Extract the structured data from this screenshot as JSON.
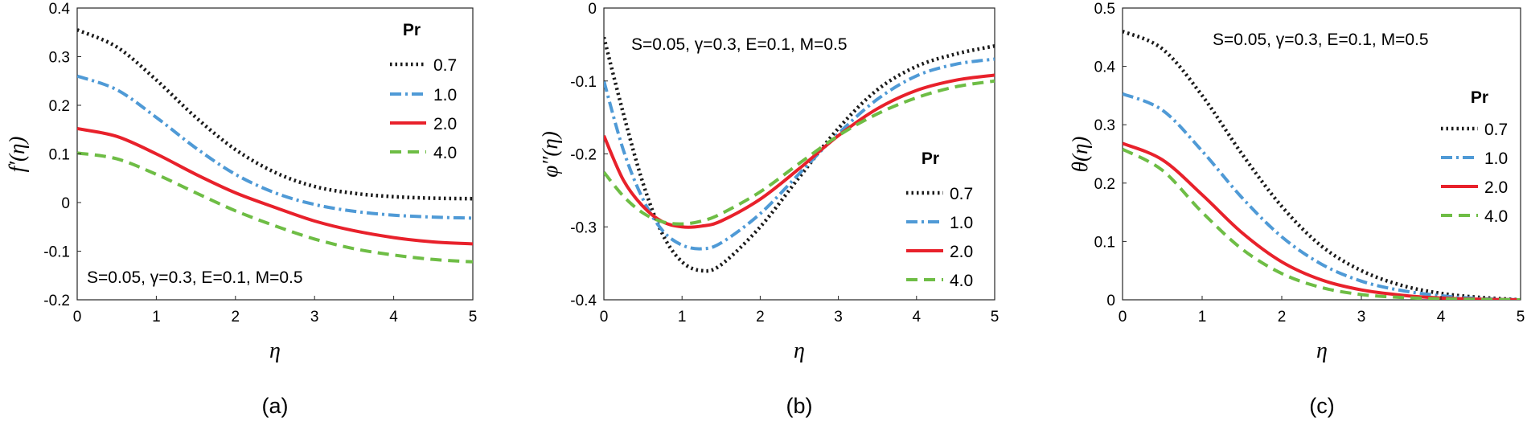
{
  "chart_data": [
    {
      "type": "line",
      "panel_label": "(a)",
      "xlabel": "η",
      "ylabel": "f′(η)",
      "xlim": [
        0,
        5
      ],
      "ylim": [
        -0.2,
        0.4
      ],
      "xticks": [
        0,
        1,
        2,
        3,
        4,
        5
      ],
      "yticks": [
        -0.2,
        -0.1,
        0,
        0.1,
        0.2,
        0.3,
        0.4
      ],
      "xtick_labels": [
        "0",
        "1",
        "2",
        "3",
        "4",
        "5"
      ],
      "ytick_labels": [
        "-0.2",
        "-0.1",
        "0",
        "0.1",
        "0.2",
        "0.3",
        "0.4"
      ],
      "annotation": "S=0.05, γ=0.3, E=0.1, M=0.5",
      "legend_title": "Pr",
      "legend_position": "top-right",
      "x": [
        0,
        0.5,
        1,
        1.5,
        2,
        2.5,
        3,
        3.5,
        4,
        4.5,
        5
      ],
      "series": [
        {
          "name": "0.7",
          "style": "dotted",
          "color": "#1a1a1a",
          "values": [
            0.355,
            0.32,
            0.252,
            0.175,
            0.109,
            0.062,
            0.033,
            0.019,
            0.012,
            0.009,
            0.008
          ]
        },
        {
          "name": "1.0",
          "style": "dashdot",
          "color": "#4f9ad6",
          "values": [
            0.26,
            0.232,
            0.175,
            0.112,
            0.058,
            0.02,
            -0.004,
            -0.018,
            -0.026,
            -0.03,
            -0.032
          ]
        },
        {
          "name": "2.0",
          "style": "solid",
          "color": "#e8212b",
          "values": [
            0.152,
            0.136,
            0.1,
            0.058,
            0.02,
            -0.01,
            -0.038,
            -0.058,
            -0.072,
            -0.081,
            -0.085
          ]
        },
        {
          "name": "4.0",
          "style": "dashed",
          "color": "#6ebd45",
          "values": [
            0.102,
            0.09,
            0.058,
            0.02,
            -0.017,
            -0.048,
            -0.075,
            -0.095,
            -0.108,
            -0.117,
            -0.122
          ]
        }
      ]
    },
    {
      "type": "line",
      "panel_label": "(b)",
      "xlabel": "η",
      "ylabel": "φ″(η)",
      "xlim": [
        0,
        5
      ],
      "ylim": [
        -0.4,
        0
      ],
      "xticks": [
        0,
        1,
        2,
        3,
        4,
        5
      ],
      "yticks": [
        -0.4,
        -0.3,
        -0.2,
        -0.1,
        0
      ],
      "xtick_labels": [
        "0",
        "1",
        "2",
        "3",
        "4",
        "5"
      ],
      "ytick_labels": [
        "-0.4",
        "-0.3",
        "-0.2",
        "-0.1",
        "0"
      ],
      "annotation": "S=0.05, γ=0.3, E=0.1, M=0.5",
      "legend_title": "Pr",
      "legend_position": "center-right",
      "x": [
        0,
        0.25,
        0.5,
        0.75,
        1,
        1.25,
        1.5,
        2,
        2.5,
        3,
        3.5,
        4,
        4.5,
        5
      ],
      "series": [
        {
          "name": "0.7",
          "style": "dotted",
          "color": "#1a1a1a",
          "values": [
            -0.04,
            -0.145,
            -0.24,
            -0.31,
            -0.348,
            -0.36,
            -0.352,
            -0.3,
            -0.232,
            -0.165,
            -0.112,
            -0.08,
            -0.063,
            -0.052
          ]
        },
        {
          "name": "1.0",
          "style": "dashdot",
          "color": "#4f9ad6",
          "values": [
            -0.1,
            -0.195,
            -0.262,
            -0.305,
            -0.325,
            -0.33,
            -0.322,
            -0.282,
            -0.227,
            -0.172,
            -0.125,
            -0.093,
            -0.077,
            -0.07
          ]
        },
        {
          "name": "2.0",
          "style": "solid",
          "color": "#e8212b",
          "values": [
            -0.175,
            -0.236,
            -0.272,
            -0.293,
            -0.3,
            -0.299,
            -0.292,
            -0.262,
            -0.22,
            -0.175,
            -0.138,
            -0.113,
            -0.099,
            -0.092
          ]
        },
        {
          "name": "4.0",
          "style": "dashed",
          "color": "#6ebd45",
          "values": [
            -0.225,
            -0.258,
            -0.281,
            -0.293,
            -0.296,
            -0.292,
            -0.282,
            -0.252,
            -0.213,
            -0.175,
            -0.145,
            -0.123,
            -0.108,
            -0.1
          ]
        }
      ]
    },
    {
      "type": "line",
      "panel_label": "(c)",
      "xlabel": "η",
      "ylabel": "θ(η)",
      "xlim": [
        0,
        5
      ],
      "ylim": [
        0,
        0.5
      ],
      "xticks": [
        0,
        1,
        2,
        3,
        4,
        5
      ],
      "yticks": [
        0,
        0.1,
        0.2,
        0.3,
        0.4,
        0.5
      ],
      "xtick_labels": [
        "0",
        "1",
        "2",
        "3",
        "4",
        "5"
      ],
      "ytick_labels": [
        "0",
        "0.1",
        "0.2",
        "0.3",
        "0.4",
        "0.5"
      ],
      "annotation": "S=0.05, γ=0.3, E=0.1, M=0.5",
      "legend_title": "Pr",
      "legend_position": "top-right",
      "x": [
        0,
        0.5,
        1,
        1.5,
        2,
        2.5,
        3,
        3.5,
        4,
        4.5,
        5
      ],
      "series": [
        {
          "name": "0.7",
          "style": "dotted",
          "color": "#1a1a1a",
          "values": [
            0.46,
            0.43,
            0.35,
            0.25,
            0.16,
            0.092,
            0.05,
            0.025,
            0.011,
            0.004,
            0.0
          ]
        },
        {
          "name": "1.0",
          "style": "dashdot",
          "color": "#4f9ad6",
          "values": [
            0.353,
            0.325,
            0.255,
            0.175,
            0.108,
            0.061,
            0.032,
            0.016,
            0.007,
            0.002,
            0.0
          ]
        },
        {
          "name": "2.0",
          "style": "solid",
          "color": "#e8212b",
          "values": [
            0.268,
            0.24,
            0.18,
            0.115,
            0.065,
            0.034,
            0.017,
            0.008,
            0.003,
            0.001,
            0.0
          ]
        },
        {
          "name": "4.0",
          "style": "dashed",
          "color": "#6ebd45",
          "values": [
            0.258,
            0.222,
            0.15,
            0.087,
            0.045,
            0.021,
            0.009,
            0.004,
            0.0015,
            0.0005,
            0.0
          ]
        }
      ]
    }
  ]
}
